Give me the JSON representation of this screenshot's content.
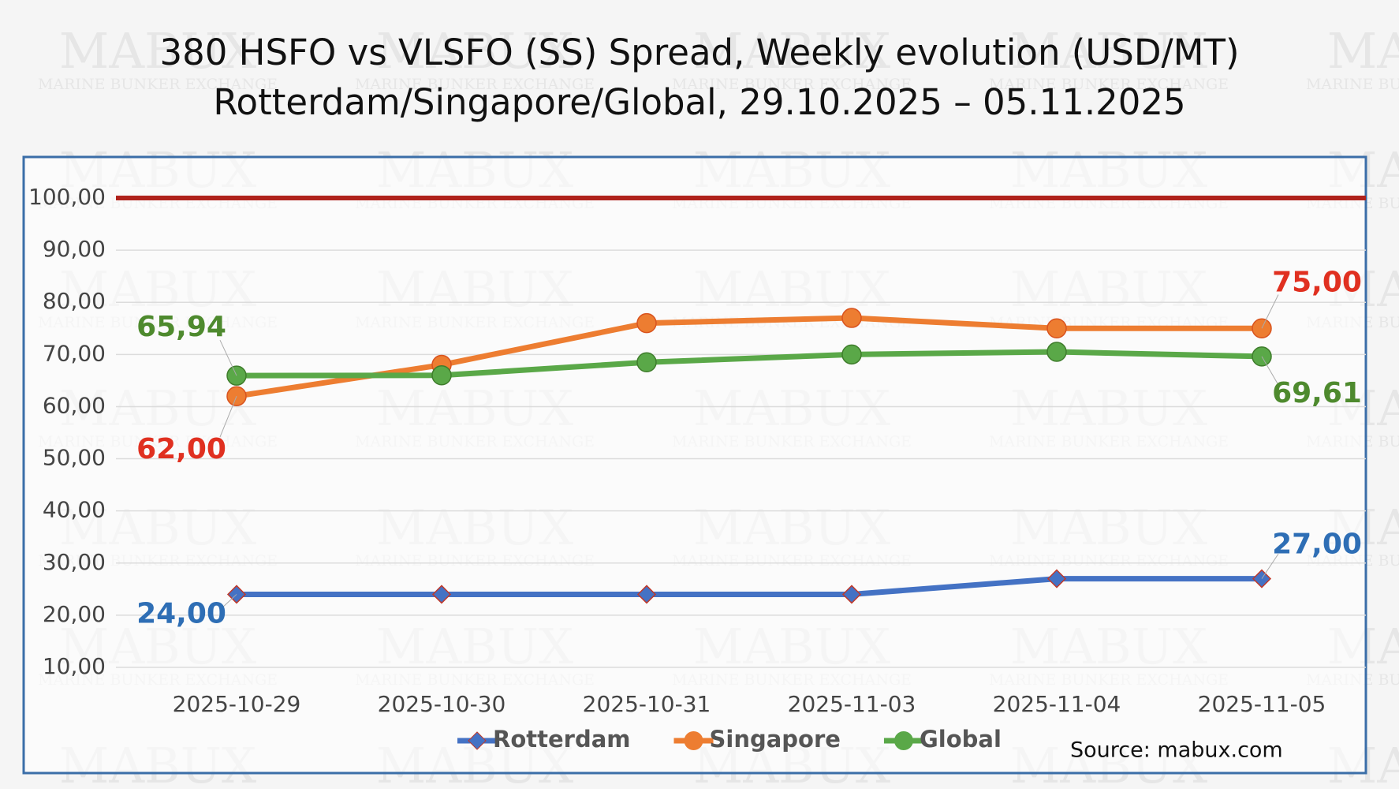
{
  "chart_data": {
    "type": "line",
    "title": "380 HSFO vs VLSFO (SS) Spread, Weekly evolution (USD/MT)",
    "subtitle": "Rotterdam/Singapore/Global, 29.10.2025 – 05.11.2025",
    "categories": [
      "2025-10-29",
      "2025-10-30",
      "2025-10-31",
      "2025-11-03",
      "2025-11-04",
      "2025-11-05"
    ],
    "series": [
      {
        "name": "Rotterdam",
        "color": "#4472c4",
        "marker": "diamond",
        "label_color": "#2e6eb5",
        "values": [
          24,
          24,
          24,
          24,
          27,
          27
        ],
        "value_labels": [
          "24,00",
          null,
          null,
          null,
          null,
          "27,00"
        ]
      },
      {
        "name": "Singapore",
        "color": "#ed7d31",
        "marker": "circle",
        "label_color": "#e03020",
        "values": [
          62,
          68,
          76,
          77,
          75,
          75
        ],
        "value_labels": [
          "62,00",
          null,
          null,
          null,
          null,
          "75,00"
        ]
      },
      {
        "name": "Global",
        "color": "#5aa848",
        "marker": "circle",
        "label_color": "#4e8a2e",
        "values": [
          65.94,
          66,
          68.5,
          70,
          70.5,
          69.61
        ],
        "value_labels": [
          "65,94",
          null,
          null,
          null,
          null,
          "69,61"
        ]
      }
    ],
    "ylim": [
      10,
      100
    ],
    "yticks": [
      {
        "value": 10,
        "label": "10,00"
      },
      {
        "value": 20,
        "label": "20,00"
      },
      {
        "value": 30,
        "label": "30,00"
      },
      {
        "value": 40,
        "label": "40,00"
      },
      {
        "value": 50,
        "label": "50,00"
      },
      {
        "value": 60,
        "label": "60,00"
      },
      {
        "value": 70,
        "label": "70,00"
      },
      {
        "value": 80,
        "label": "80,00"
      },
      {
        "value": 90,
        "label": "90,00"
      },
      {
        "value": 100,
        "label": "100,00"
      }
    ],
    "grid": true,
    "reference_line": {
      "value": 100,
      "color": "#b0221c"
    },
    "legend": "bottom",
    "source": "Source: mabux.com",
    "watermark": [
      "MABUX",
      "MARINE BUNKER EXCHANGE"
    ]
  }
}
